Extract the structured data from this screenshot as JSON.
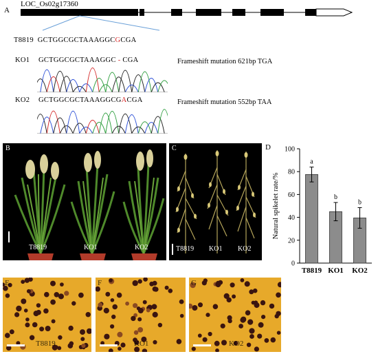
{
  "panel_a": {
    "letter": "A",
    "gene_label": "LOC_Os02g17360",
    "wt_label": "T8819",
    "wt_seq_prefix": "GCTGGCGCTAAAGGC",
    "wt_seq_highlight": "G",
    "wt_seq_suffix": "CGA",
    "ko1_label": "KO1",
    "ko1_seq_prefix": "GCTGGCGCTAAAGGC",
    "ko1_seq_highlight": "-",
    "ko1_seq_suffix": "CGA",
    "ko1_mutation": "Frameshift mutation 621bp TGA",
    "ko2_label": "KO2",
    "ko2_seq_prefix": "GCTGGCGCTAAAGGCG",
    "ko2_seq_highlight": "A",
    "ko2_seq_suffix": "CGA",
    "ko2_mutation": "Frameshift mutation 552bp TAA",
    "trace_colors": {
      "A": "#2e9e3e",
      "C": "#2b4fd6",
      "G": "#222222",
      "T": "#d42a2a"
    }
  },
  "panel_b": {
    "letter": "B",
    "labels": [
      "T8819",
      "KO1",
      "KO2"
    ]
  },
  "panel_c": {
    "letter": "C",
    "labels": [
      "T8819",
      "KO1",
      "KO2"
    ]
  },
  "panel_d": {
    "letter": "D"
  },
  "chart_data": {
    "type": "bar",
    "categories": [
      "T8819",
      "KO1",
      "KO2"
    ],
    "values": [
      77.5,
      45,
      39.5
    ],
    "errors": [
      6.5,
      8,
      9
    ],
    "significance": [
      "a",
      "b",
      "b"
    ],
    "ylabel": "Natural spikelet  rate/%",
    "ylim": [
      0,
      100
    ],
    "yticks": [
      0,
      20,
      40,
      60,
      80,
      100
    ],
    "bar_color": "#8c8c8c"
  },
  "panel_e": {
    "letter": "E",
    "label": "T8819"
  },
  "panel_f": {
    "letter": "F",
    "label": "KO1"
  },
  "panel_g": {
    "letter": "G",
    "label": "KO2"
  }
}
